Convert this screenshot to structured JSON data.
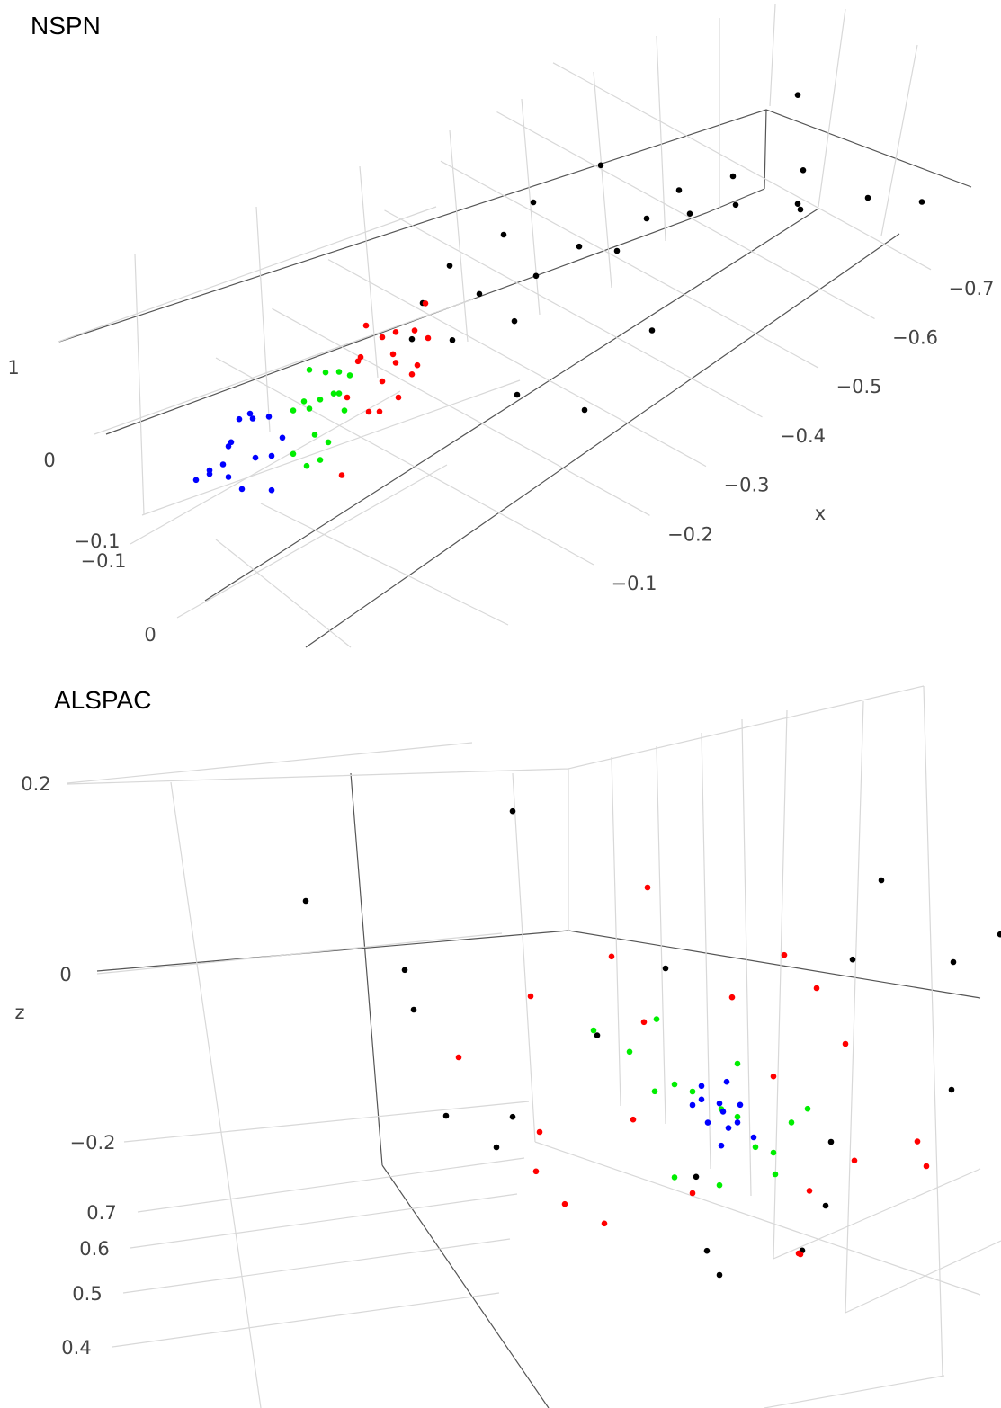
{
  "chart_data": [
    {
      "type": "scatter3d",
      "title": "NSPN",
      "x_label": "x",
      "xticks": [
        {
          "value": -0.1,
          "label": "−0.1"
        },
        {
          "value": -0.2,
          "label": "−0.2"
        },
        {
          "value": -0.3,
          "label": "−0.3"
        },
        {
          "value": -0.4,
          "label": "−0.4"
        },
        {
          "value": -0.5,
          "label": "−0.5"
        },
        {
          "value": -0.6,
          "label": "−0.6"
        },
        {
          "value": -0.7,
          "label": "−0.7"
        }
      ],
      "yticks": [
        {
          "value": -0.1,
          "label": "−0.1"
        },
        0
      ],
      "zticks": [
        {
          "value": -0.1,
          "label": "−0.1"
        },
        0,
        1
      ],
      "series": [
        {
          "color": "#000000",
          "x": [
            -0.28,
            -0.3,
            -0.32,
            -0.34,
            -0.36,
            -0.38,
            -0.4,
            -0.42,
            -0.45,
            -0.48,
            -0.5,
            -0.52,
            -0.55,
            -0.58,
            -0.6,
            -0.62,
            -0.65,
            -0.68,
            -0.7,
            -0.72,
            -0.75,
            -0.78,
            -0.8,
            -0.35,
            -0.4,
            -0.5
          ],
          "y": [
            0.02,
            0,
            0.05,
            -0.02,
            0.03,
            0.1,
            0,
            0.06,
            -0.04,
            0.04,
            0.12,
            0,
            0.08,
            0.15,
            0.05,
            0.2,
            0.1,
            0.25,
            0.2,
            0.15,
            0.3,
            -0.05,
            0.35,
            0.2,
            0.3,
            0.25
          ],
          "z": [
            0.2,
            0.4,
            0.1,
            0.5,
            0.3,
            0.2,
            0.6,
            0.3,
            0.5,
            0.2,
            0.4,
            0.7,
            0.3,
            0.5,
            0.2,
            0.6,
            0.3,
            0.5,
            0.1,
            0.2,
            0.4,
            -0.2,
            0.3,
            0,
            0,
            0.1
          ]
        },
        {
          "color": "#ff0000",
          "x": [
            -0.2,
            -0.22,
            -0.23,
            -0.24,
            -0.25,
            -0.26,
            -0.27,
            -0.28,
            -0.29,
            -0.3,
            -0.31,
            -0.22,
            -0.25,
            -0.27,
            -0.2,
            -0.15,
            -0.24,
            -0.26
          ],
          "y": [
            0.02,
            0,
            -0.02,
            0.03,
            0,
            0.01,
            -0.01,
            0.04,
            0,
            0.02,
            -0.02,
            0.08,
            0.06,
            0.05,
            0.1,
            0.15,
            -0.03,
            0.02
          ],
          "z": [
            0,
            0.2,
            0.1,
            0,
            0.3,
            0.1,
            0.2,
            0,
            0.15,
            0.1,
            0.25,
            0,
            -0.1,
            0,
            0.2,
            0,
            0.35,
            0.05
          ]
        },
        {
          "color": "#00ee00",
          "x": [
            -0.12,
            -0.14,
            -0.15,
            -0.16,
            -0.17,
            -0.18,
            -0.19,
            -0.2,
            -0.13,
            -0.15,
            -0.17,
            -0.19,
            -0.14,
            -0.16,
            -0.18,
            -0.21
          ],
          "y": [
            0.06,
            0,
            0.03,
            -0.02,
            0.01,
            0,
            0.04,
            -0.01,
            0.08,
            0.05,
            -0.03,
            0.02,
            0.1,
            0.07,
            0.03,
            0
          ],
          "z": [
            0,
            0.1,
            0.2,
            0,
            0.1,
            0.3,
            0,
            0.15,
            -0.1,
            0,
            0.25,
            0.1,
            0,
            -0.05,
            0.2,
            0.1
          ]
        },
        {
          "color": "#0000ff",
          "x": [
            -0.02,
            -0.03,
            -0.04,
            -0.05,
            -0.06,
            -0.07,
            -0.08,
            -0.09,
            -0.1,
            -0.11,
            -0.12,
            -0.06,
            -0.08,
            -0.1,
            -0.05,
            -0.09
          ],
          "y": [
            0,
            0.02,
            -0.01,
            0.03,
            0,
            -0.02,
            0.1,
            0.01,
            -0.03,
            0,
            0.02,
            0.05,
            -0.02,
            0.04,
            0.01,
            -0.01
          ],
          "z": [
            0,
            0.1,
            -0.05,
            0,
            0.15,
            0.05,
            0,
            -0.1,
            0.1,
            0.2,
            0,
            -0.1,
            0.25,
            0,
            0.05,
            0.3
          ]
        }
      ]
    },
    {
      "type": "scatter3d",
      "title": "ALSPAC",
      "z_label": "z",
      "yticks": [
        0.4,
        0.5,
        0.6,
        0.7
      ],
      "zticks": [
        {
          "value": -0.2,
          "label": "−0.2"
        },
        0,
        0.2
      ],
      "series": [
        {
          "color": "#000000",
          "x": [
            -0.4,
            -0.35,
            -0.3,
            -0.25,
            -0.15,
            -0.1,
            0.2,
            0.3,
            0.25,
            -0.2,
            0.1,
            0.05,
            -0.05,
            0.15,
            -0.12,
            0.22,
            0.28,
            -0.28,
            0,
            0.18
          ],
          "y": [
            0.45,
            0.6,
            0.5,
            0.65,
            0.4,
            0.7,
            0.55,
            0.5,
            0.62,
            0.48,
            0.58,
            0.44,
            0.66,
            0.52,
            0.56,
            0.42,
            0.68,
            0.54,
            0.6,
            0.46
          ],
          "z": [
            0.05,
            0.02,
            -0.05,
            -0.12,
            0.13,
            0.05,
            0.1,
            0,
            -0.1,
            -0.2,
            -0.28,
            -0.32,
            -0.18,
            -0.25,
            -0.06,
            -0.02,
            0.08,
            -0.15,
            -0.3,
            -0.2
          ]
        },
        {
          "color": "#ff0000",
          "x": [
            -0.25,
            -0.2,
            -0.15,
            -0.1,
            -0.05,
            0,
            0.05,
            0.1,
            0.15,
            0.2,
            0.25,
            -0.18,
            -0.08,
            0.08,
            0.18,
            -0.12,
            0.12,
            0.22,
            -0.02,
            0.03,
            -0.22,
            0.14
          ],
          "y": [
            0.5,
            0.6,
            0.45,
            0.55,
            0.65,
            0.4,
            0.7,
            0.5,
            0.6,
            0.45,
            0.55,
            0.62,
            0.48,
            0.58,
            0.42,
            0.66,
            0.52,
            0.6,
            0.44,
            0.56,
            0.64,
            0.5
          ],
          "z": [
            -0.1,
            -0.15,
            -0.05,
            0.02,
            -0.2,
            0.05,
            -0.25,
            -0.12,
            -0.18,
            -0.1,
            -0.2,
            -0.22,
            -0.28,
            0.03,
            -0.05,
            -0.12,
            -0.3,
            -0.16,
            -0.08,
            -0.02,
            -0.18,
            -0.24
          ]
        },
        {
          "color": "#00ee00",
          "x": [
            -0.08,
            -0.05,
            -0.03,
            0,
            0.03,
            0.06,
            0.08,
            0.1,
            -0.06,
            -0.02,
            0.02,
            0.05,
            0.09,
            -0.04,
            0.07,
            0.01
          ],
          "y": [
            0.55,
            0.6,
            0.5,
            0.65,
            0.45,
            0.55,
            0.6,
            0.5,
            0.4,
            0.7,
            0.55,
            0.48,
            0.62,
            0.52,
            0.58,
            0.45
          ],
          "z": [
            -0.08,
            -0.1,
            -0.06,
            -0.12,
            -0.15,
            -0.18,
            -0.14,
            -0.2,
            -0.1,
            -0.05,
            -0.22,
            -0.16,
            -0.12,
            -0.13,
            -0.2,
            -0.24
          ]
        },
        {
          "color": "#0000ff",
          "x": [
            0,
            0.01,
            0.02,
            0.03,
            0.04,
            0.01,
            0.02,
            0.03,
            0,
            0.02,
            0.015,
            0.035
          ],
          "y": [
            0.55,
            0.5,
            0.6,
            0.55,
            0.52,
            0.58,
            0.5,
            0.62,
            0.6,
            0.56,
            0.53,
            0.57
          ],
          "z": [
            -0.13,
            -0.15,
            -0.14,
            -0.16,
            -0.12,
            -0.17,
            -0.13,
            -0.15,
            -0.12,
            -0.14,
            -0.16,
            -0.13
          ]
        }
      ]
    }
  ]
}
